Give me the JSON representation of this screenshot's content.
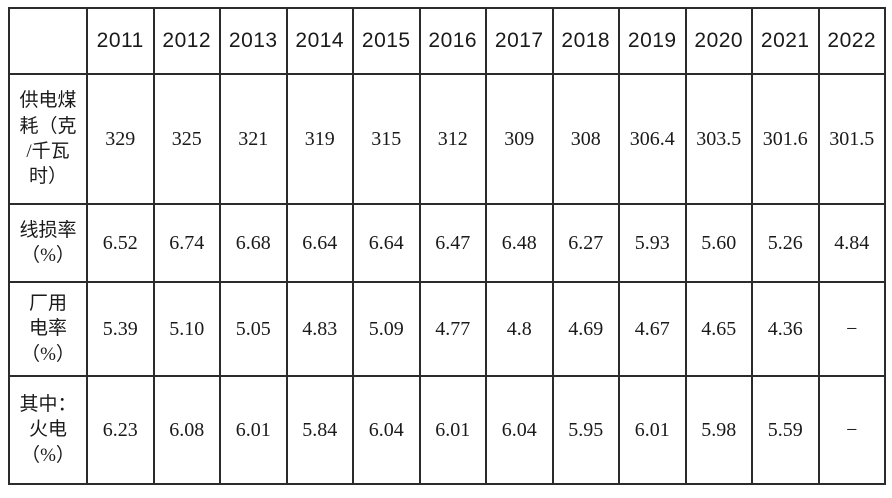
{
  "colors": {
    "background": "#ffffff",
    "border": "#2b2b2b",
    "text": "#1a1a1a"
  },
  "table": {
    "corner_header": "",
    "columns": [
      "2011",
      "2012",
      "2013",
      "2014",
      "2015",
      "2016",
      "2017",
      "2018",
      "2019",
      "2020",
      "2021",
      "2022"
    ],
    "rows": [
      {
        "label": "供电煤耗（克/千瓦时）",
        "label_display": "供电煤\n耗（克\n/千瓦\n时）",
        "values": [
          "329",
          "325",
          "321",
          "319",
          "315",
          "312",
          "309",
          "308",
          "306.4",
          "303.5",
          "301.6",
          "301.5"
        ]
      },
      {
        "label": "线损率（%）",
        "label_display": "线损率\n（%）",
        "values": [
          "6.52",
          "6.74",
          "6.68",
          "6.64",
          "6.64",
          "6.47",
          "6.48",
          "6.27",
          "5.93",
          "5.60",
          "5.26",
          "4.84"
        ]
      },
      {
        "label": "厂用电率（%）",
        "label_display": "厂用\n电率\n（%）",
        "values": [
          "5.39",
          "5.10",
          "5.05",
          "4.83",
          "5.09",
          "4.77",
          "4.8",
          "4.69",
          "4.67",
          "4.65",
          "4.36",
          "−"
        ]
      },
      {
        "label": "其中：火电（%）",
        "label_display": "其中：\n火电\n（%）",
        "values": [
          "6.23",
          "6.08",
          "6.01",
          "5.84",
          "6.04",
          "6.01",
          "6.04",
          "5.95",
          "6.01",
          "5.98",
          "5.59",
          "−"
        ]
      }
    ]
  }
}
